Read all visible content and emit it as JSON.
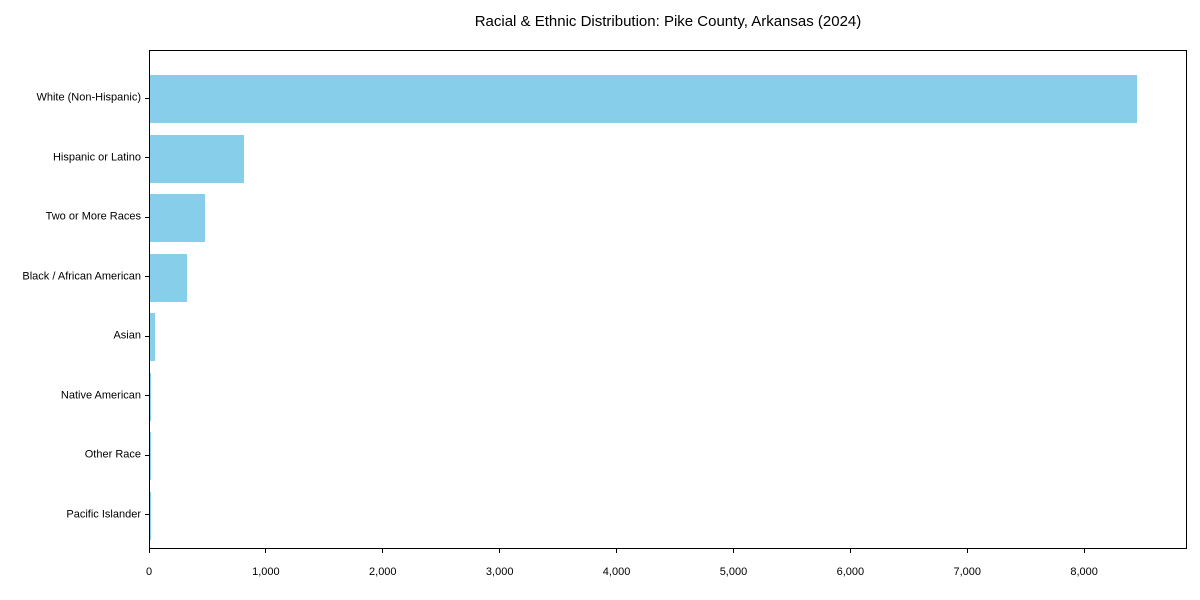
{
  "chart_data": {
    "type": "bar",
    "orientation": "horizontal",
    "title": "Racial & Ethnic Distribution: Pike County, Arkansas (2024)",
    "categories": [
      "White (Non-Hispanic)",
      "Hispanic or Latino",
      "Two or More Races",
      "Black / African American",
      "Asian",
      "Native American",
      "Other Race",
      "Pacific Islander"
    ],
    "values": [
      8440,
      800,
      470,
      315,
      45,
      12,
      4,
      1
    ],
    "xlabel": "",
    "ylabel": "",
    "xlim": [
      0,
      8880
    ],
    "x_ticks": [
      0,
      1000,
      2000,
      3000,
      4000,
      5000,
      6000,
      7000,
      8000
    ],
    "x_tick_labels": [
      "0",
      "1,000",
      "2,000",
      "3,000",
      "4,000",
      "5,000",
      "6,000",
      "7,000",
      "8,000"
    ],
    "bar_color": "#87CEEB",
    "axis_color": "#000000",
    "background_color": "#ffffff",
    "grid": false,
    "legend": null
  }
}
